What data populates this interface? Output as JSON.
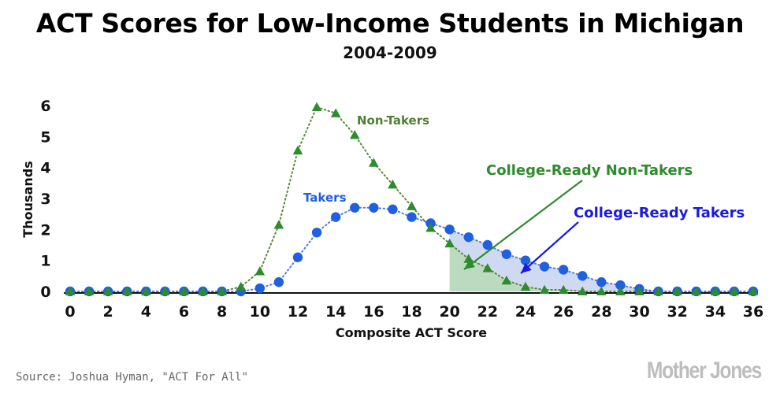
{
  "header": {
    "title": "ACT Scores for Low-Income Students in Michigan",
    "subtitle": "2004-2009"
  },
  "footer": {
    "source": "Source: Joshua Hyman, \"ACT For All\"",
    "brand": "Mother Jones"
  },
  "chart_data": {
    "type": "line",
    "xlabel": "Composite ACT Score",
    "ylabel": "Thousands",
    "xlim": [
      0,
      36
    ],
    "ylim": [
      0,
      6
    ],
    "x_ticks": [
      0,
      2,
      4,
      6,
      8,
      10,
      12,
      14,
      16,
      18,
      20,
      22,
      24,
      26,
      28,
      30,
      32,
      34,
      36
    ],
    "y_ticks": [
      0,
      1,
      2,
      3,
      4,
      5,
      6
    ],
    "x": [
      0,
      1,
      2,
      3,
      4,
      5,
      6,
      7,
      8,
      9,
      10,
      11,
      12,
      13,
      14,
      15,
      16,
      17,
      18,
      19,
      20,
      21,
      22,
      23,
      24,
      25,
      26,
      27,
      28,
      29,
      30,
      31,
      32,
      33,
      34,
      35,
      36
    ],
    "series": [
      {
        "name": "Non-Takers",
        "marker": "triangle",
        "color": "#2e8b2e",
        "line_color": "#5a8a3a",
        "values": [
          0,
          0,
          0,
          0,
          0,
          0,
          0,
          0,
          0,
          0.15,
          0.65,
          2.15,
          4.55,
          5.95,
          5.75,
          5.05,
          4.15,
          3.45,
          2.75,
          2.05,
          1.55,
          1.05,
          0.75,
          0.35,
          0.15,
          0.05,
          0.05,
          0,
          0,
          0,
          0,
          0,
          0,
          0,
          0,
          0,
          0
        ]
      },
      {
        "name": "Takers",
        "marker": "circle",
        "color": "#1f5fe0",
        "line_color": "#4d7fd6",
        "values": [
          0,
          0,
          0,
          0,
          0,
          0,
          0,
          0,
          0,
          0,
          0.1,
          0.3,
          1.1,
          1.9,
          2.4,
          2.7,
          2.7,
          2.65,
          2.4,
          2.2,
          2.0,
          1.75,
          1.5,
          1.2,
          1.0,
          0.8,
          0.7,
          0.5,
          0.3,
          0.2,
          0.08,
          0,
          0,
          0,
          0,
          0,
          0
        ]
      }
    ],
    "shaded_region_start": 20,
    "annotations": [
      {
        "text": "Non-Takers",
        "color": "#4f7f33"
      },
      {
        "text": "Takers",
        "color": "#1f5fe0"
      },
      {
        "text": "College-Ready Non-Takers",
        "color": "#2e8b2e"
      },
      {
        "text": "College-Ready Takers",
        "color": "#1a1ae0"
      }
    ],
    "grid": false,
    "legend": "none"
  }
}
